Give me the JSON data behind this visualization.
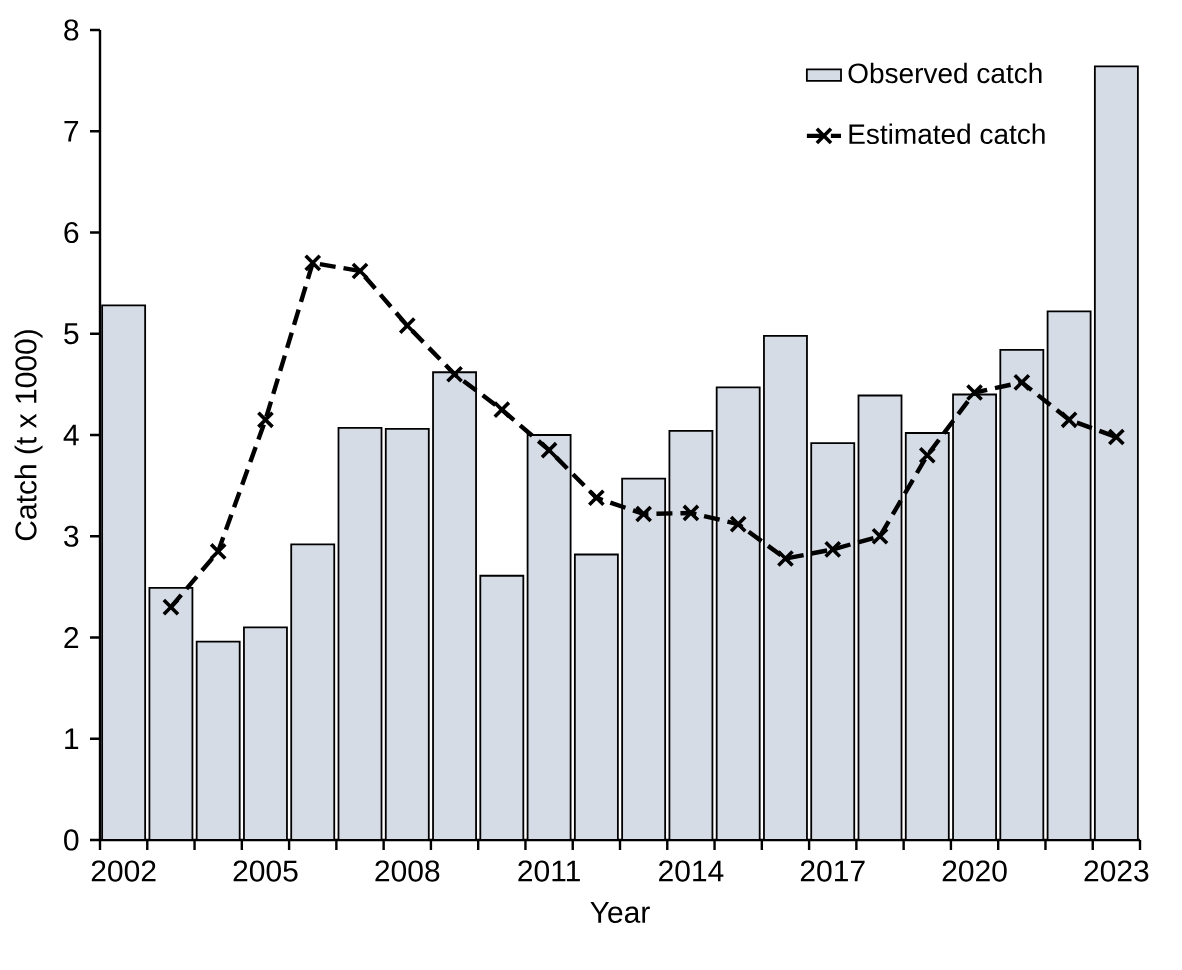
{
  "chart_data": {
    "type": "bar",
    "xlabel": "Year",
    "ylabel": "Catch (t x 1000)",
    "categories": [
      "2002",
      null,
      null,
      "2005",
      null,
      null,
      "2008",
      null,
      null,
      "2011",
      null,
      null,
      "2014",
      null,
      null,
      "2017",
      null,
      null,
      "2020",
      null,
      null,
      "2023"
    ],
    "series": [
      {
        "name": "Observed catch",
        "color": "#d6dce6",
        "values": [
          5.28,
          2.49,
          1.96,
          2.1,
          2.92,
          4.07,
          4.06,
          4.62,
          2.61,
          4.0,
          2.82,
          3.57,
          4.04,
          4.47,
          4.98,
          3.92,
          4.39,
          4.02,
          4.4,
          4.84,
          5.22,
          7.64
        ]
      },
      {
        "name": "Estimated catch",
        "type": "line",
        "color": "#000000",
        "marker": "cross",
        "line_style": "dashed",
        "values": [
          null,
          2.3,
          2.85,
          4.15,
          5.7,
          5.62,
          5.08,
          4.6,
          4.25,
          3.85,
          3.38,
          3.22,
          3.23,
          3.12,
          2.78,
          2.87,
          3.0,
          3.8,
          4.42,
          4.52,
          4.15,
          3.98
        ]
      }
    ],
    "ylim": [
      0,
      8
    ],
    "yticks": [
      0,
      1,
      2,
      3,
      4,
      5,
      6,
      7,
      8
    ],
    "grid": false,
    "legend": "top right"
  }
}
